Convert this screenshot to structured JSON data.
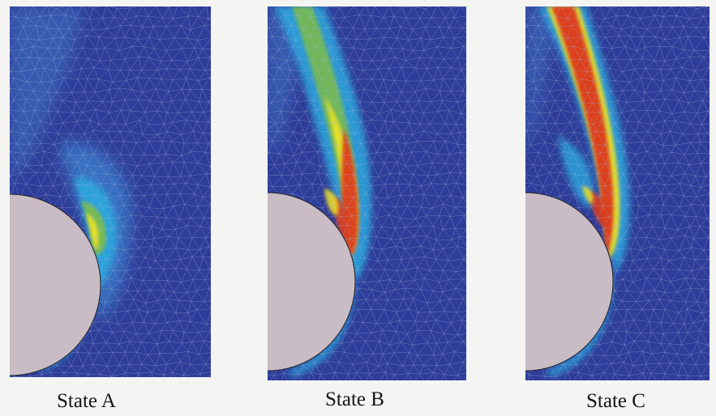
{
  "panels": [
    {
      "id": "a",
      "label": "State A",
      "stage": 0
    },
    {
      "id": "b",
      "label": "State B",
      "stage": 1
    },
    {
      "id": "c",
      "label": "State C",
      "stage": 2
    }
  ],
  "colors": {
    "background": "#2e3d9a",
    "mesh": "#a4aed6",
    "particle": "#c9bcc5",
    "cyan": "#29a8df",
    "green": "#7dbd45",
    "yellow": "#f2e51e",
    "red": "#dd3a1c",
    "caption": "#141414"
  }
}
